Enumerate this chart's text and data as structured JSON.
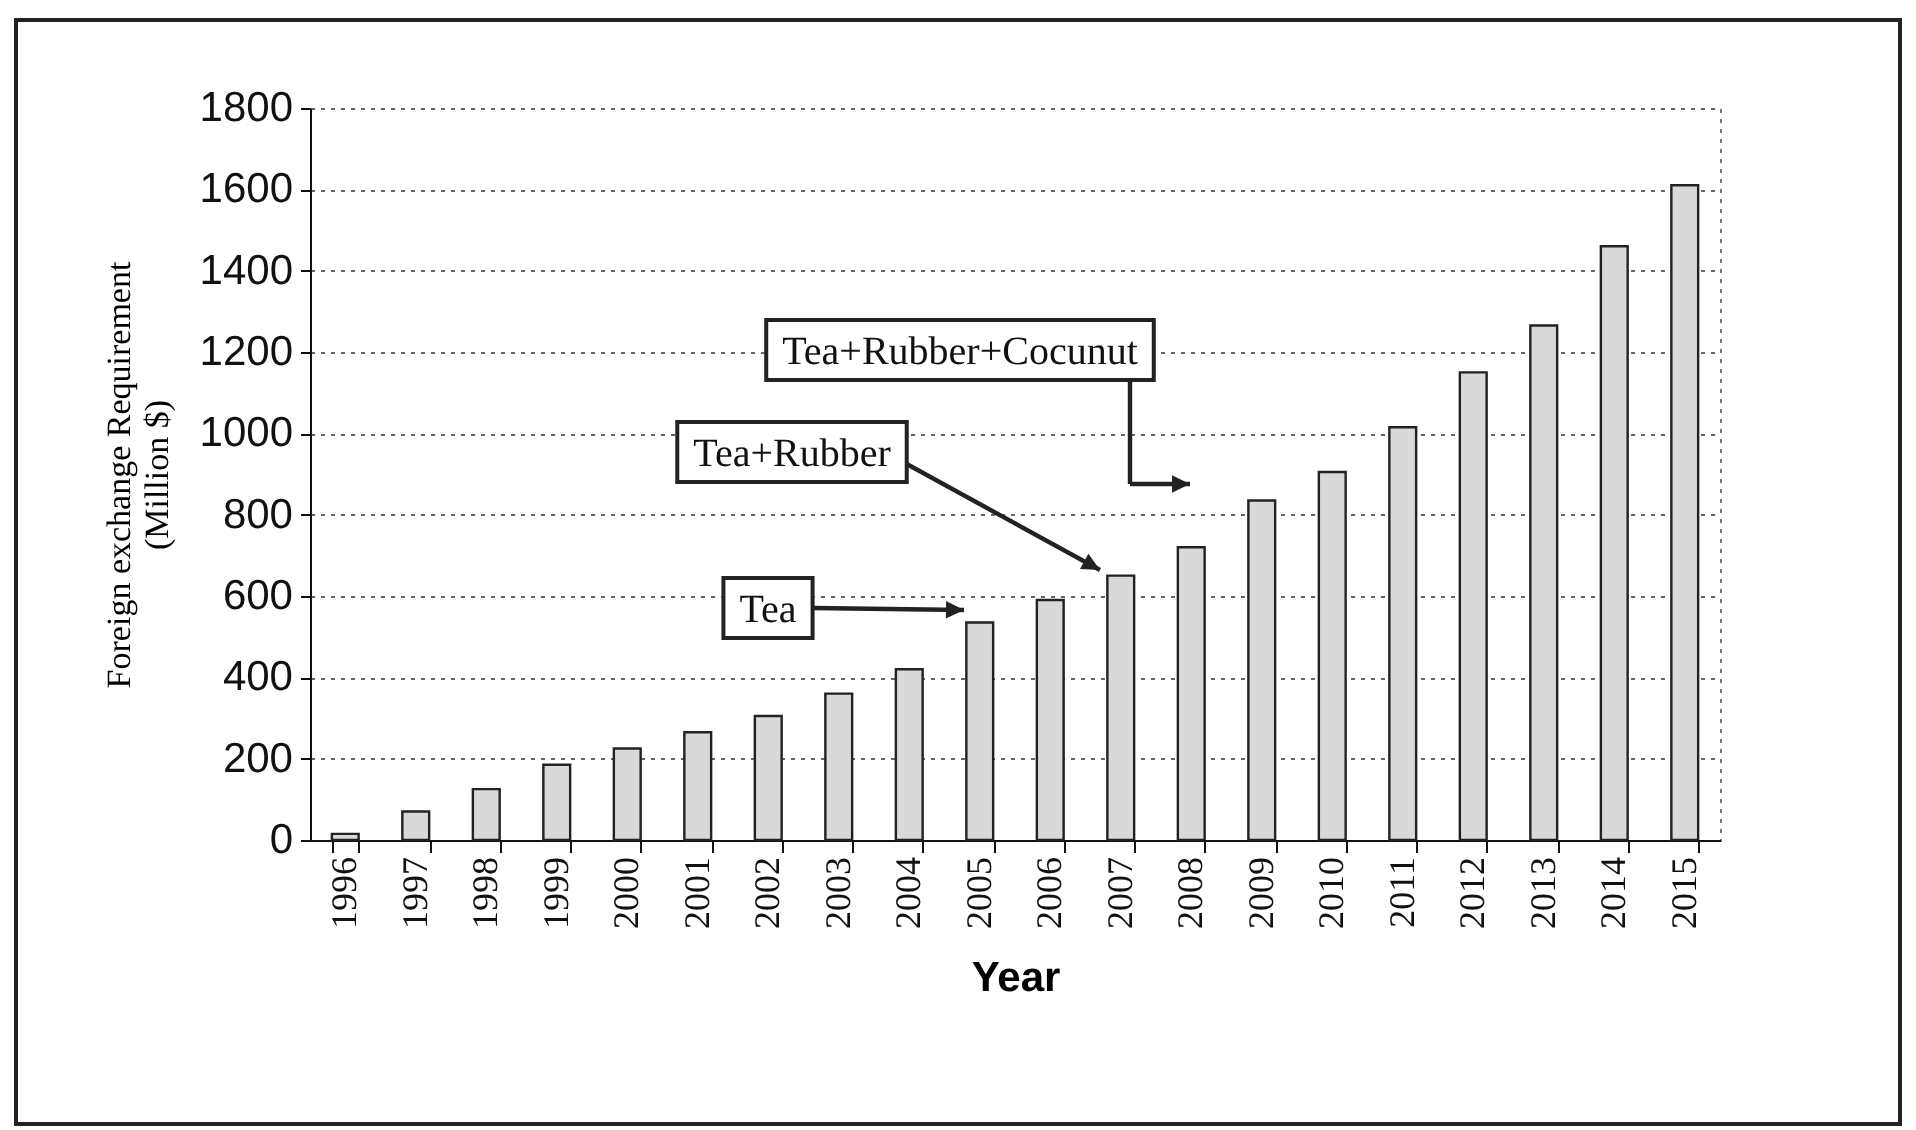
{
  "chart_data": {
    "type": "bar",
    "xlabel": "Year",
    "ylabel": "Foreign exchange Requirement (Million $)",
    "categories": [
      "1996",
      "1997",
      "1998",
      "1999",
      "2000",
      "2001",
      "2002",
      "2003",
      "2004",
      "2005",
      "2006",
      "2007",
      "2008",
      "2009",
      "2010",
      "2011",
      "2012",
      "2013",
      "2014",
      "2015"
    ],
    "values": [
      15,
      70,
      125,
      185,
      225,
      265,
      305,
      360,
      420,
      535,
      590,
      650,
      720,
      835,
      905,
      1015,
      1150,
      1265,
      1460,
      1610
    ],
    "color": "#d9d9d9",
    "ylim": [
      0,
      1800
    ],
    "yticks": [
      0,
      200,
      400,
      600,
      800,
      1000,
      1200,
      1400,
      1600,
      1800
    ],
    "grid": "y",
    "annotations": [
      "Tea",
      "Tea+Rubber",
      "Tea+Rubber+Cocunut"
    ]
  }
}
